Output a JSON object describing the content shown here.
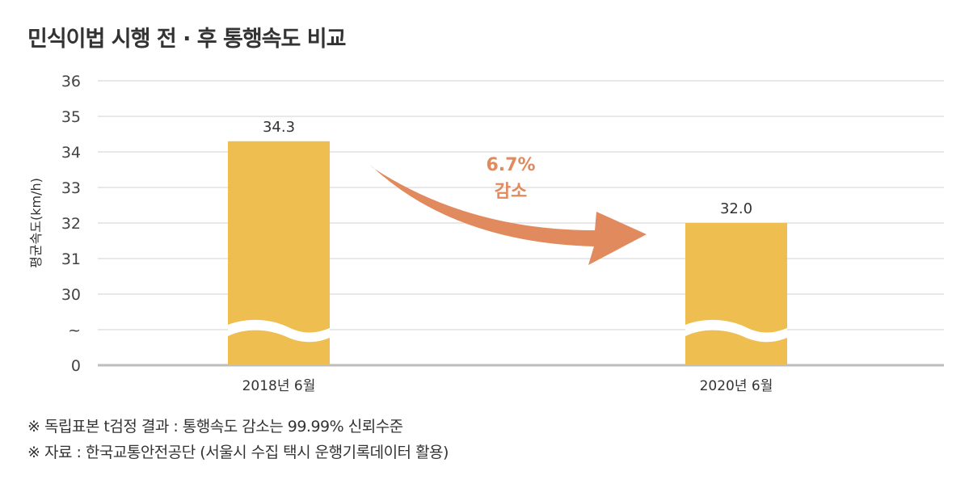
{
  "title": "민식이법 시행 전 · 후 통행속도 비교",
  "notes": [
    "※ 독립표본 t검정 결과 : 통행속도 감소는 99.99% 신뢰수준",
    "※ 자료 : 한국교통안전공단 (서울시 수집 택시 운행기록데이터 활용)"
  ],
  "chart_data": {
    "type": "bar",
    "title": "민식이법 시행 전 · 후 통행속도 비교",
    "ylabel": "평균속도(km/h)",
    "xlabel": "",
    "categories": [
      "2018년 6월",
      "2020년 6월"
    ],
    "values": [
      34.3,
      32.0
    ],
    "value_labels": [
      "34.3",
      "32.0"
    ],
    "y_ticks": [
      "0",
      "~",
      "30",
      "31",
      "32",
      "33",
      "34",
      "35",
      "36"
    ],
    "ylim": [
      0,
      36
    ],
    "axis_break": "0 ~ 30",
    "grid": true,
    "annotation": {
      "line1": "6.7%",
      "line2": "감소"
    },
    "colors": {
      "bar": "#EFBE50",
      "arrow": "#E18A5E",
      "annotation": "#E18A5E",
      "grid": "#d9d9d9",
      "axis": "#bdbdbd"
    }
  }
}
